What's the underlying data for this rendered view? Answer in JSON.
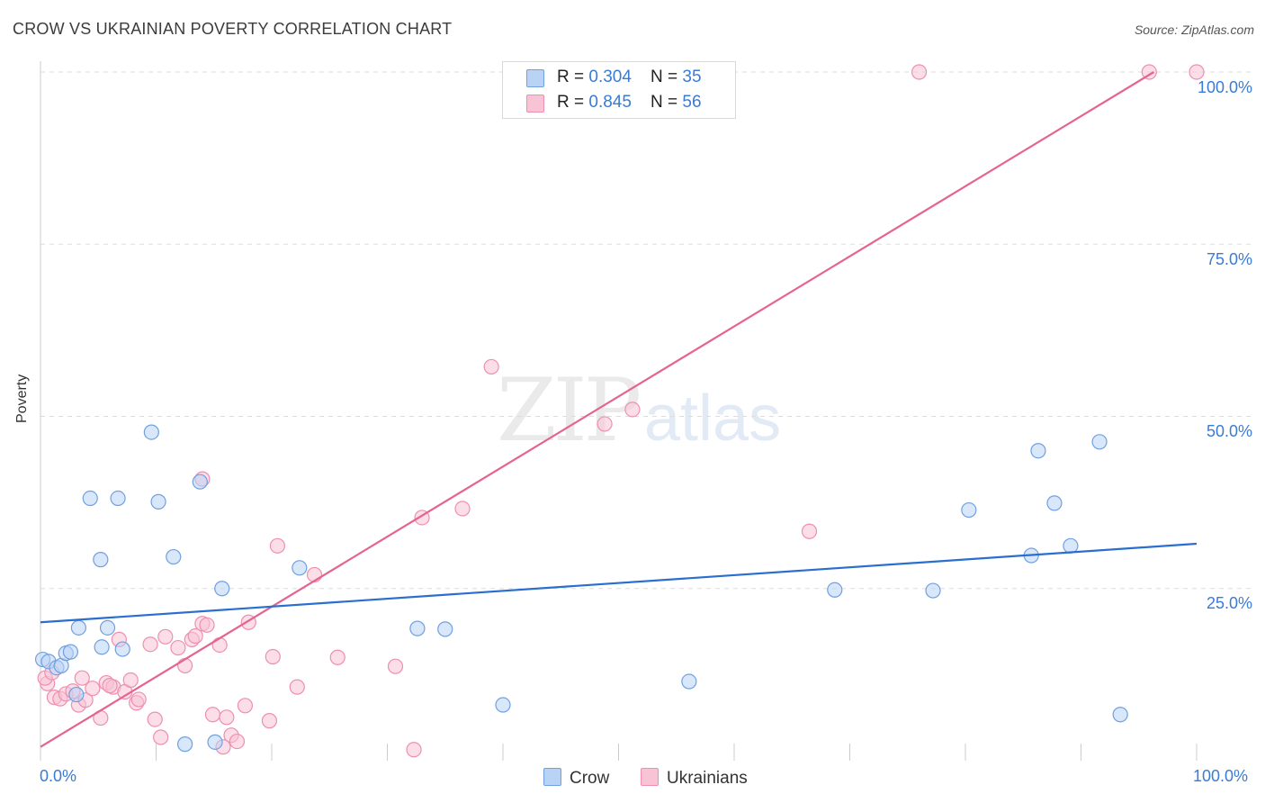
{
  "title": "CROW VS UKRAINIAN POVERTY CORRELATION CHART",
  "source": "Source: ZipAtlas.com",
  "watermark": {
    "zip": "ZIP",
    "atlas": "atlas"
  },
  "legend_top": {
    "rows": [
      {
        "r_label": "R = ",
        "r_value": "0.304",
        "n_label": "N = ",
        "n_value": "35"
      },
      {
        "r_label": "R = ",
        "r_value": "0.845",
        "n_label": "N = ",
        "n_value": "56"
      }
    ]
  },
  "legend_bottom": {
    "crow": "Crow",
    "ukrainians": "Ukrainians"
  },
  "colors": {
    "crow_fill": "#b9d3f5",
    "crow_stroke": "#6fa0e0",
    "crow_line": "#2a6fcf",
    "ukr_fill": "#f8c3d4",
    "ukr_stroke": "#ee8fb0",
    "ukr_line": "#e5648f",
    "grid": "#dddddd",
    "tick_text": "#3a7bd5"
  },
  "chart_data": {
    "type": "scatter",
    "title": "CROW VS UKRAINIAN POVERTY CORRELATION CHART",
    "xlabel": "",
    "ylabel": "Poverty",
    "xlim": [
      0,
      100
    ],
    "ylim": [
      0,
      100
    ],
    "x_tick_labels": [
      "0.0%",
      "100.0%"
    ],
    "y_tick_labels": [
      {
        "value": 25,
        "label": "25.0%"
      },
      {
        "value": 50,
        "label": "50.0%"
      },
      {
        "value": 75,
        "label": "75.0%"
      },
      {
        "value": 100,
        "label": "100.0%"
      }
    ],
    "series": [
      {
        "name": "Crow",
        "R": 0.304,
        "N": 35,
        "trend": {
          "x": [
            0,
            100
          ],
          "y": [
            20.1,
            31.5
          ]
        },
        "points": [
          [
            0.2,
            14.7
          ],
          [
            0.7,
            14.4
          ],
          [
            1.4,
            13.5
          ],
          [
            1.8,
            13.8
          ],
          [
            2.2,
            15.6
          ],
          [
            2.6,
            15.8
          ],
          [
            3.3,
            19.3
          ],
          [
            3.1,
            9.6
          ],
          [
            4.3,
            38.1
          ],
          [
            5.2,
            29.2
          ],
          [
            5.3,
            16.5
          ],
          [
            5.8,
            19.3
          ],
          [
            6.7,
            38.1
          ],
          [
            7.1,
            16.2
          ],
          [
            9.6,
            47.7
          ],
          [
            10.2,
            37.6
          ],
          [
            11.5,
            29.6
          ],
          [
            12.5,
            2.4
          ],
          [
            13.8,
            40.5
          ],
          [
            15.1,
            2.7
          ],
          [
            15.7,
            25.0
          ],
          [
            22.4,
            28.0
          ],
          [
            32.6,
            19.2
          ],
          [
            35.0,
            19.1
          ],
          [
            40.0,
            8.1
          ],
          [
            56.1,
            11.5
          ],
          [
            68.7,
            24.8
          ],
          [
            77.2,
            24.7
          ],
          [
            80.3,
            36.4
          ],
          [
            85.7,
            29.8
          ],
          [
            86.3,
            45.0
          ],
          [
            87.7,
            37.4
          ],
          [
            89.1,
            31.2
          ],
          [
            91.6,
            46.3
          ],
          [
            93.4,
            6.7
          ]
        ]
      },
      {
        "name": "Ukrainians",
        "R": 0.845,
        "N": 56,
        "trend": {
          "x": [
            0,
            96.3
          ],
          "y": [
            2.0,
            100.0
          ]
        },
        "points": [
          [
            0.6,
            11.2
          ],
          [
            0.4,
            12.0
          ],
          [
            1.2,
            9.2
          ],
          [
            1.7,
            9.0
          ],
          [
            2.2,
            9.7
          ],
          [
            2.8,
            10.1
          ],
          [
            3.3,
            8.1
          ],
          [
            3.6,
            12.0
          ],
          [
            3.9,
            8.8
          ],
          [
            4.5,
            10.5
          ],
          [
            5.2,
            6.2
          ],
          [
            5.7,
            11.3
          ],
          [
            6.3,
            10.7
          ],
          [
            6.8,
            17.6
          ],
          [
            7.3,
            10.0
          ],
          [
            7.8,
            11.7
          ],
          [
            8.3,
            8.4
          ],
          [
            8.5,
            8.9
          ],
          [
            9.5,
            16.9
          ],
          [
            9.9,
            6.0
          ],
          [
            10.4,
            3.4
          ],
          [
            10.8,
            18.0
          ],
          [
            11.9,
            16.4
          ],
          [
            12.5,
            13.8
          ],
          [
            13.1,
            17.6
          ],
          [
            13.4,
            18.1
          ],
          [
            14.0,
            40.9
          ],
          [
            14.0,
            19.9
          ],
          [
            14.4,
            19.7
          ],
          [
            14.9,
            6.7
          ],
          [
            15.5,
            16.8
          ],
          [
            15.8,
            2.0
          ],
          [
            16.1,
            6.3
          ],
          [
            16.5,
            3.7
          ],
          [
            17.0,
            2.8
          ],
          [
            17.7,
            8.0
          ],
          [
            18.0,
            20.1
          ],
          [
            19.8,
            5.8
          ],
          [
            20.1,
            15.1
          ],
          [
            20.5,
            31.2
          ],
          [
            22.2,
            10.7
          ],
          [
            23.7,
            27.0
          ],
          [
            25.7,
            15.0
          ],
          [
            30.7,
            13.7
          ],
          [
            32.3,
            1.6
          ],
          [
            33.0,
            35.3
          ],
          [
            36.5,
            36.6
          ],
          [
            39.0,
            57.2
          ],
          [
            48.8,
            48.9
          ],
          [
            51.2,
            51.0
          ],
          [
            66.5,
            33.3
          ],
          [
            76.0,
            100.0
          ],
          [
            95.9,
            100.0
          ],
          [
            100.0,
            100.0
          ],
          [
            1.0,
            12.8
          ],
          [
            6.0,
            10.9
          ]
        ]
      }
    ],
    "legend_position": "top-center"
  }
}
